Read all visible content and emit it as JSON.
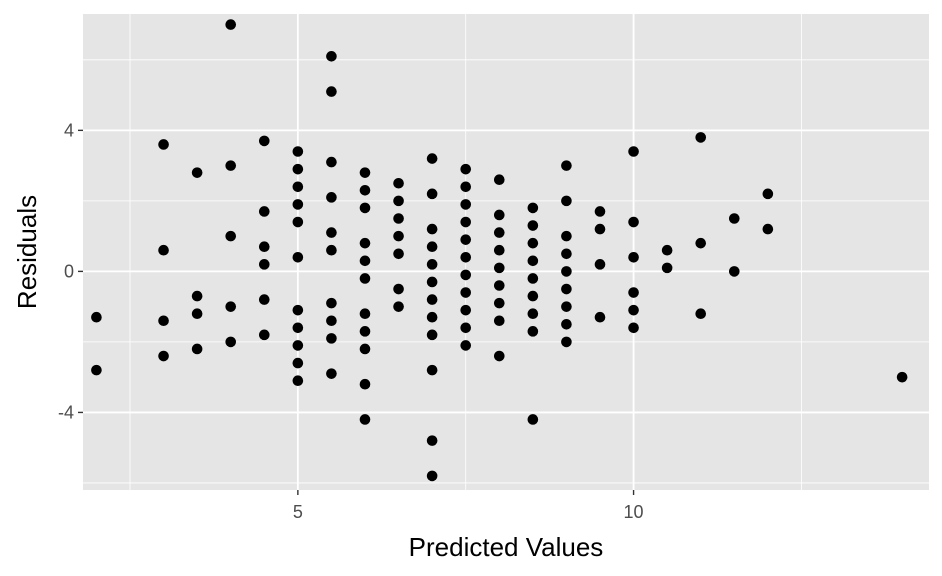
{
  "chart_data": {
    "type": "scatter",
    "xlabel": "Predicted Values",
    "ylabel": "Residuals",
    "xlim": [
      1.8,
      14.4
    ],
    "ylim": [
      -6.2,
      7.3
    ],
    "x_ticks": [
      5,
      10
    ],
    "x_tick_labels": [
      "5",
      "10"
    ],
    "x_minor_ticks": [
      2.5,
      7.5,
      12.5
    ],
    "y_ticks": [
      -4,
      0,
      4
    ],
    "y_tick_labels": [
      "-4",
      "0",
      "4"
    ],
    "y_minor_ticks": [
      -6,
      -2,
      2,
      6
    ],
    "grid": true,
    "colors": {
      "panel": "#e5e5e5",
      "grid": "#ffffff",
      "point": "#000000",
      "tick": "#333333"
    },
    "points": [
      {
        "x": 2,
        "y": -1.3
      },
      {
        "x": 2,
        "y": -2.8
      },
      {
        "x": 3,
        "y": 3.6
      },
      {
        "x": 3,
        "y": 0.6
      },
      {
        "x": 3,
        "y": -1.4
      },
      {
        "x": 3,
        "y": -2.4
      },
      {
        "x": 3.5,
        "y": 2.8
      },
      {
        "x": 3.5,
        "y": -0.7
      },
      {
        "x": 3.5,
        "y": -1.2
      },
      {
        "x": 3.5,
        "y": -2.2
      },
      {
        "x": 4,
        "y": 7.0
      },
      {
        "x": 4,
        "y": 3.0
      },
      {
        "x": 4,
        "y": 1.0
      },
      {
        "x": 4,
        "y": -1.0
      },
      {
        "x": 4,
        "y": -2.0
      },
      {
        "x": 4.5,
        "y": 3.7
      },
      {
        "x": 4.5,
        "y": 1.7
      },
      {
        "x": 4.5,
        "y": 0.7
      },
      {
        "x": 4.5,
        "y": 0.2
      },
      {
        "x": 4.5,
        "y": -0.8
      },
      {
        "x": 4.5,
        "y": -1.8
      },
      {
        "x": 5,
        "y": 3.4
      },
      {
        "x": 5,
        "y": 2.9
      },
      {
        "x": 5,
        "y": 2.4
      },
      {
        "x": 5,
        "y": 1.9
      },
      {
        "x": 5,
        "y": 1.4
      },
      {
        "x": 5,
        "y": 0.4
      },
      {
        "x": 5,
        "y": -1.1
      },
      {
        "x": 5,
        "y": -1.6
      },
      {
        "x": 5,
        "y": -2.1
      },
      {
        "x": 5,
        "y": -2.6
      },
      {
        "x": 5,
        "y": -3.1
      },
      {
        "x": 5.5,
        "y": 6.1
      },
      {
        "x": 5.5,
        "y": 5.1
      },
      {
        "x": 5.5,
        "y": 3.1
      },
      {
        "x": 5.5,
        "y": 2.1
      },
      {
        "x": 5.5,
        "y": 1.1
      },
      {
        "x": 5.5,
        "y": 0.6
      },
      {
        "x": 5.5,
        "y": -0.9
      },
      {
        "x": 5.5,
        "y": -1.4
      },
      {
        "x": 5.5,
        "y": -1.9
      },
      {
        "x": 5.5,
        "y": -2.9
      },
      {
        "x": 6,
        "y": 2.8
      },
      {
        "x": 6,
        "y": 2.3
      },
      {
        "x": 6,
        "y": 1.8
      },
      {
        "x": 6,
        "y": 0.8
      },
      {
        "x": 6,
        "y": 0.3
      },
      {
        "x": 6,
        "y": -0.2
      },
      {
        "x": 6,
        "y": -1.2
      },
      {
        "x": 6,
        "y": -1.7
      },
      {
        "x": 6,
        "y": -2.2
      },
      {
        "x": 6,
        "y": -3.2
      },
      {
        "x": 6,
        "y": -4.2
      },
      {
        "x": 6.5,
        "y": 2.5
      },
      {
        "x": 6.5,
        "y": 2.0
      },
      {
        "x": 6.5,
        "y": 1.5
      },
      {
        "x": 6.5,
        "y": 1.0
      },
      {
        "x": 6.5,
        "y": 0.5
      },
      {
        "x": 6.5,
        "y": -0.5
      },
      {
        "x": 6.5,
        "y": -1.0
      },
      {
        "x": 7,
        "y": 3.2
      },
      {
        "x": 7,
        "y": 2.2
      },
      {
        "x": 7,
        "y": 1.2
      },
      {
        "x": 7,
        "y": 0.7
      },
      {
        "x": 7,
        "y": 0.2
      },
      {
        "x": 7,
        "y": -0.3
      },
      {
        "x": 7,
        "y": -0.8
      },
      {
        "x": 7,
        "y": -1.3
      },
      {
        "x": 7,
        "y": -1.8
      },
      {
        "x": 7,
        "y": -2.8
      },
      {
        "x": 7,
        "y": -4.8
      },
      {
        "x": 7,
        "y": -5.8
      },
      {
        "x": 7.5,
        "y": 2.9
      },
      {
        "x": 7.5,
        "y": 2.4
      },
      {
        "x": 7.5,
        "y": 1.9
      },
      {
        "x": 7.5,
        "y": 1.4
      },
      {
        "x": 7.5,
        "y": 0.9
      },
      {
        "x": 7.5,
        "y": 0.4
      },
      {
        "x": 7.5,
        "y": -0.1
      },
      {
        "x": 7.5,
        "y": -0.6
      },
      {
        "x": 7.5,
        "y": -1.1
      },
      {
        "x": 7.5,
        "y": -1.6
      },
      {
        "x": 7.5,
        "y": -2.1
      },
      {
        "x": 8,
        "y": 2.6
      },
      {
        "x": 8,
        "y": 1.6
      },
      {
        "x": 8,
        "y": 1.1
      },
      {
        "x": 8,
        "y": 0.6
      },
      {
        "x": 8,
        "y": 0.1
      },
      {
        "x": 8,
        "y": -0.4
      },
      {
        "x": 8,
        "y": -0.9
      },
      {
        "x": 8,
        "y": -1.4
      },
      {
        "x": 8,
        "y": -2.4
      },
      {
        "x": 8.5,
        "y": 1.8
      },
      {
        "x": 8.5,
        "y": 1.3
      },
      {
        "x": 8.5,
        "y": 0.8
      },
      {
        "x": 8.5,
        "y": 0.3
      },
      {
        "x": 8.5,
        "y": -0.2
      },
      {
        "x": 8.5,
        "y": -0.7
      },
      {
        "x": 8.5,
        "y": -1.2
      },
      {
        "x": 8.5,
        "y": -1.7
      },
      {
        "x": 8.5,
        "y": -4.2
      },
      {
        "x": 9,
        "y": 3.0
      },
      {
        "x": 9,
        "y": 2.0
      },
      {
        "x": 9,
        "y": 1.0
      },
      {
        "x": 9,
        "y": 0.5
      },
      {
        "x": 9,
        "y": 0.0
      },
      {
        "x": 9,
        "y": -0.5
      },
      {
        "x": 9,
        "y": -1.0
      },
      {
        "x": 9,
        "y": -1.5
      },
      {
        "x": 9,
        "y": -2.0
      },
      {
        "x": 9.5,
        "y": 1.7
      },
      {
        "x": 9.5,
        "y": 1.2
      },
      {
        "x": 9.5,
        "y": 0.2
      },
      {
        "x": 9.5,
        "y": -1.3
      },
      {
        "x": 10,
        "y": 3.4
      },
      {
        "x": 10,
        "y": 1.4
      },
      {
        "x": 10,
        "y": 0.4
      },
      {
        "x": 10,
        "y": -0.6
      },
      {
        "x": 10,
        "y": -1.1
      },
      {
        "x": 10,
        "y": -1.6
      },
      {
        "x": 10.5,
        "y": 0.6
      },
      {
        "x": 10.5,
        "y": 0.1
      },
      {
        "x": 11,
        "y": 3.8
      },
      {
        "x": 11,
        "y": 0.8
      },
      {
        "x": 11,
        "y": -1.2
      },
      {
        "x": 11.5,
        "y": 1.5
      },
      {
        "x": 11.5,
        "y": 0.0
      },
      {
        "x": 12,
        "y": 2.2
      },
      {
        "x": 12,
        "y": 1.2
      },
      {
        "x": 14,
        "y": -3.0
      }
    ]
  }
}
